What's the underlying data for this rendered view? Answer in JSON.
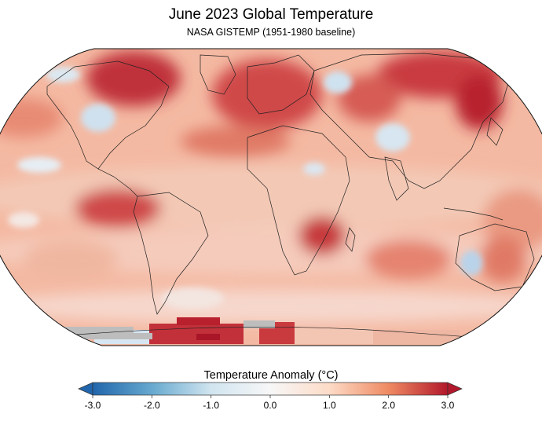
{
  "title": "June 2023 Global Temperature",
  "subtitle": "NASA GISTEMP (1951-1980 baseline)",
  "colorbar": {
    "title": "Temperature Anomaly (°C)",
    "ticks": [
      "-3.0",
      "-2.0",
      "-1.0",
      "0.0",
      "1.0",
      "2.0",
      "3.0"
    ],
    "min": -3.0,
    "max": 3.0,
    "colors": [
      "#2166ac",
      "#67a9cf",
      "#d1e5f0",
      "#f7f7f7",
      "#fddbc7",
      "#ef8a62",
      "#b2182b"
    ],
    "extends": "both"
  },
  "map": {
    "projection": "Robinson-like",
    "land_outlines": true,
    "no_data_color": "#bdbdbd"
  }
}
